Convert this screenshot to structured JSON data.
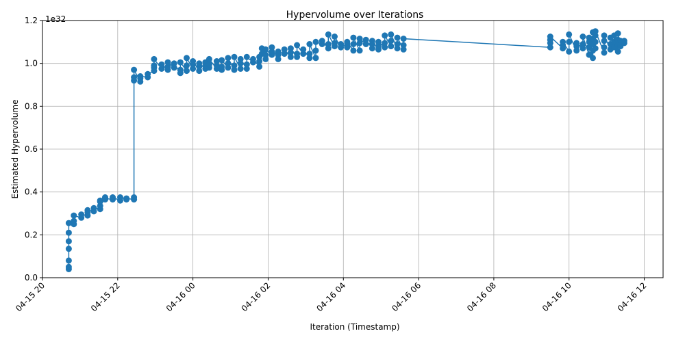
{
  "chart_data": {
    "type": "line",
    "title": "Hypervolume over Iterations",
    "xlabel": "Iteration (Timestamp)",
    "ylabel": "Estimated Hypervolume",
    "y_offset_label": "1e32",
    "x_axis_kind": "datetime",
    "xlim": [
      "2025-04-15T20:00",
      "2025-04-16T12:30"
    ],
    "ylim": [
      0,
      1.2
    ],
    "grid": true,
    "legend": "none",
    "marker": "circle",
    "color": "#1f77b4",
    "x_ticks": [
      {
        "t": "2025-04-15T20:00",
        "label": "04-15 20"
      },
      {
        "t": "2025-04-15T22:00",
        "label": "04-15 22"
      },
      {
        "t": "2025-04-16T00:00",
        "label": "04-16 00"
      },
      {
        "t": "2025-04-16T02:00",
        "label": "04-16 02"
      },
      {
        "t": "2025-04-16T04:00",
        "label": "04-16 04"
      },
      {
        "t": "2025-04-16T06:00",
        "label": "04-16 06"
      },
      {
        "t": "2025-04-16T08:00",
        "label": "04-16 08"
      },
      {
        "t": "2025-04-16T10:00",
        "label": "04-16 10"
      },
      {
        "t": "2025-04-16T12:00",
        "label": "04-16 12"
      }
    ],
    "y_ticks": [
      {
        "v": 0.0,
        "label": "0.0"
      },
      {
        "v": 0.2,
        "label": "0.2"
      },
      {
        "v": 0.4,
        "label": "0.4"
      },
      {
        "v": 0.6,
        "label": "0.6"
      },
      {
        "v": 0.8,
        "label": "0.8"
      },
      {
        "v": 1.0,
        "label": "1.0"
      },
      {
        "v": 1.2,
        "label": "1.2"
      }
    ],
    "series": [
      {
        "points": [
          [
            "2025-04-15T20:42",
            0.04
          ],
          [
            "2025-04-15T20:42",
            0.05
          ],
          [
            "2025-04-15T20:42",
            0.08
          ],
          [
            "2025-04-15T20:42",
            0.135
          ],
          [
            "2025-04-15T20:42",
            0.17
          ],
          [
            "2025-04-15T20:42",
            0.21
          ],
          [
            "2025-04-15T20:42",
            0.255
          ],
          [
            "2025-04-15T20:50",
            0.25
          ],
          [
            "2025-04-15T20:50",
            0.265
          ],
          [
            "2025-04-15T20:50",
            0.29
          ],
          [
            "2025-04-15T21:02",
            0.28
          ],
          [
            "2025-04-15T21:02",
            0.295
          ],
          [
            "2025-04-15T21:12",
            0.29
          ],
          [
            "2025-04-15T21:12",
            0.305
          ],
          [
            "2025-04-15T21:12",
            0.315
          ],
          [
            "2025-04-15T21:22",
            0.31
          ],
          [
            "2025-04-15T21:22",
            0.325
          ],
          [
            "2025-04-15T21:32",
            0.32
          ],
          [
            "2025-04-15T21:32",
            0.335
          ],
          [
            "2025-04-15T21:32",
            0.355
          ],
          [
            "2025-04-15T21:32",
            0.36
          ],
          [
            "2025-04-15T21:40",
            0.365
          ],
          [
            "2025-04-15T21:40",
            0.375
          ],
          [
            "2025-04-15T21:40",
            0.37
          ],
          [
            "2025-04-15T21:52",
            0.365
          ],
          [
            "2025-04-15T21:52",
            0.375
          ],
          [
            "2025-04-15T22:04",
            0.36
          ],
          [
            "2025-04-15T22:04",
            0.375
          ],
          [
            "2025-04-15T22:14",
            0.365
          ],
          [
            "2025-04-15T22:14",
            0.37
          ],
          [
            "2025-04-15T22:26",
            0.365
          ],
          [
            "2025-04-15T22:26",
            0.375
          ],
          [
            "2025-04-15T22:26",
            0.92
          ],
          [
            "2025-04-15T22:26",
            0.935
          ],
          [
            "2025-04-15T22:26",
            0.97
          ],
          [
            "2025-04-15T22:36",
            0.915
          ],
          [
            "2025-04-15T22:36",
            0.93
          ],
          [
            "2025-04-15T22:36",
            0.94
          ],
          [
            "2025-04-15T22:48",
            0.935
          ],
          [
            "2025-04-15T22:48",
            0.95
          ],
          [
            "2025-04-15T22:58",
            0.965
          ],
          [
            "2025-04-15T22:58",
            0.98
          ],
          [
            "2025-04-15T22:58",
            0.99
          ],
          [
            "2025-04-15T22:58",
            1.02
          ],
          [
            "2025-04-15T23:10",
            0.975
          ],
          [
            "2025-04-15T23:10",
            0.995
          ],
          [
            "2025-04-15T23:20",
            0.97
          ],
          [
            "2025-04-15T23:20",
            0.985
          ],
          [
            "2025-04-15T23:20",
            1.005
          ],
          [
            "2025-04-15T23:30",
            0.98
          ],
          [
            "2025-04-15T23:30",
            1.0
          ],
          [
            "2025-04-15T23:40",
            0.955
          ],
          [
            "2025-04-15T23:40",
            0.97
          ],
          [
            "2025-04-15T23:40",
            1.005
          ],
          [
            "2025-04-15T23:50",
            0.965
          ],
          [
            "2025-04-15T23:50",
            0.99
          ],
          [
            "2025-04-15T23:50",
            1.025
          ],
          [
            "2025-04-16T00:00",
            0.975
          ],
          [
            "2025-04-16T00:00",
            0.995
          ],
          [
            "2025-04-16T00:00",
            1.01
          ],
          [
            "2025-04-16T00:10",
            0.965
          ],
          [
            "2025-04-16T00:10",
            0.985
          ],
          [
            "2025-04-16T00:10",
            1.0
          ],
          [
            "2025-04-16T00:20",
            0.975
          ],
          [
            "2025-04-16T00:20",
            0.99
          ],
          [
            "2025-04-16T00:20",
            1.005
          ],
          [
            "2025-04-16T00:26",
            0.98
          ],
          [
            "2025-04-16T00:26",
            0.995
          ],
          [
            "2025-04-16T00:26",
            1.02
          ],
          [
            "2025-04-16T00:38",
            0.975
          ],
          [
            "2025-04-16T00:38",
            0.99
          ],
          [
            "2025-04-16T00:38",
            1.01
          ],
          [
            "2025-04-16T00:46",
            0.97
          ],
          [
            "2025-04-16T00:46",
            0.985
          ],
          [
            "2025-04-16T00:46",
            1.015
          ],
          [
            "2025-04-16T00:56",
            0.98
          ],
          [
            "2025-04-16T00:56",
            1.0
          ],
          [
            "2025-04-16T00:56",
            1.025
          ],
          [
            "2025-04-16T01:06",
            0.97
          ],
          [
            "2025-04-16T01:06",
            0.99
          ],
          [
            "2025-04-16T01:06",
            1.03
          ],
          [
            "2025-04-16T01:16",
            0.975
          ],
          [
            "2025-04-16T01:16",
            1.0
          ],
          [
            "2025-04-16T01:16",
            1.02
          ],
          [
            "2025-04-16T01:26",
            0.975
          ],
          [
            "2025-04-16T01:26",
            0.995
          ],
          [
            "2025-04-16T01:26",
            1.03
          ],
          [
            "2025-04-16T01:36",
            1.005
          ],
          [
            "2025-04-16T01:36",
            1.02
          ],
          [
            "2025-04-16T01:46",
            0.985
          ],
          [
            "2025-04-16T01:46",
            1.01
          ],
          [
            "2025-04-16T01:46",
            1.03
          ],
          [
            "2025-04-16T01:50",
            1.045
          ],
          [
            "2025-04-16T01:50",
            1.07
          ],
          [
            "2025-04-16T01:56",
            1.02
          ],
          [
            "2025-04-16T01:56",
            1.04
          ],
          [
            "2025-04-16T01:56",
            1.065
          ],
          [
            "2025-04-16T02:06",
            1.04
          ],
          [
            "2025-04-16T02:06",
            1.055
          ],
          [
            "2025-04-16T02:06",
            1.075
          ],
          [
            "2025-04-16T02:16",
            1.02
          ],
          [
            "2025-04-16T02:16",
            1.04
          ],
          [
            "2025-04-16T02:16",
            1.055
          ],
          [
            "2025-04-16T02:26",
            1.045
          ],
          [
            "2025-04-16T02:26",
            1.065
          ],
          [
            "2025-04-16T02:36",
            1.03
          ],
          [
            "2025-04-16T02:36",
            1.05
          ],
          [
            "2025-04-16T02:36",
            1.07
          ],
          [
            "2025-04-16T02:46",
            1.03
          ],
          [
            "2025-04-16T02:46",
            1.045
          ],
          [
            "2025-04-16T02:46",
            1.085
          ],
          [
            "2025-04-16T02:56",
            1.045
          ],
          [
            "2025-04-16T02:56",
            1.065
          ],
          [
            "2025-04-16T03:06",
            1.025
          ],
          [
            "2025-04-16T03:06",
            1.045
          ],
          [
            "2025-04-16T03:06",
            1.09
          ],
          [
            "2025-04-16T03:16",
            1.025
          ],
          [
            "2025-04-16T03:16",
            1.06
          ],
          [
            "2025-04-16T03:16",
            1.1
          ],
          [
            "2025-04-16T03:26",
            1.09
          ],
          [
            "2025-04-16T03:26",
            1.105
          ],
          [
            "2025-04-16T03:36",
            1.07
          ],
          [
            "2025-04-16T03:36",
            1.09
          ],
          [
            "2025-04-16T03:36",
            1.135
          ],
          [
            "2025-04-16T03:46",
            1.08
          ],
          [
            "2025-04-16T03:46",
            1.095
          ],
          [
            "2025-04-16T03:46",
            1.125
          ],
          [
            "2025-04-16T03:56",
            1.075
          ],
          [
            "2025-04-16T03:56",
            1.09
          ],
          [
            "2025-04-16T04:06",
            1.075
          ],
          [
            "2025-04-16T04:06",
            1.09
          ],
          [
            "2025-04-16T04:06",
            1.1
          ],
          [
            "2025-04-16T04:16",
            1.06
          ],
          [
            "2025-04-16T04:16",
            1.09
          ],
          [
            "2025-04-16T04:16",
            1.12
          ],
          [
            "2025-04-16T04:26",
            1.06
          ],
          [
            "2025-04-16T04:26",
            1.095
          ],
          [
            "2025-04-16T04:26",
            1.115
          ],
          [
            "2025-04-16T04:36",
            1.09
          ],
          [
            "2025-04-16T04:36",
            1.11
          ],
          [
            "2025-04-16T04:46",
            1.07
          ],
          [
            "2025-04-16T04:46",
            1.09
          ],
          [
            "2025-04-16T04:46",
            1.105
          ],
          [
            "2025-04-16T04:56",
            1.065
          ],
          [
            "2025-04-16T04:56",
            1.08
          ],
          [
            "2025-04-16T04:56",
            1.1
          ],
          [
            "2025-04-16T05:06",
            1.075
          ],
          [
            "2025-04-16T05:06",
            1.095
          ],
          [
            "2025-04-16T05:06",
            1.13
          ],
          [
            "2025-04-16T05:16",
            1.08
          ],
          [
            "2025-04-16T05:16",
            1.105
          ],
          [
            "2025-04-16T05:16",
            1.135
          ],
          [
            "2025-04-16T05:26",
            1.07
          ],
          [
            "2025-04-16T05:26",
            1.09
          ],
          [
            "2025-04-16T05:26",
            1.12
          ],
          [
            "2025-04-16T05:36",
            1.065
          ],
          [
            "2025-04-16T05:36",
            1.085
          ],
          [
            "2025-04-16T05:36",
            1.115
          ],
          [
            "2025-04-16T09:30",
            1.075
          ],
          [
            "2025-04-16T09:30",
            1.095
          ],
          [
            "2025-04-16T09:30",
            1.11
          ],
          [
            "2025-04-16T09:30",
            1.125
          ],
          [
            "2025-04-16T09:50",
            1.07
          ],
          [
            "2025-04-16T09:50",
            1.085
          ],
          [
            "2025-04-16T09:50",
            1.1
          ],
          [
            "2025-04-16T10:00",
            1.055
          ],
          [
            "2025-04-16T10:00",
            1.1
          ],
          [
            "2025-04-16T10:00",
            1.135
          ],
          [
            "2025-04-16T10:12",
            1.06
          ],
          [
            "2025-04-16T10:12",
            1.08
          ],
          [
            "2025-04-16T10:12",
            1.095
          ],
          [
            "2025-04-16T10:22",
            1.07
          ],
          [
            "2025-04-16T10:22",
            1.09
          ],
          [
            "2025-04-16T10:22",
            1.125
          ],
          [
            "2025-04-16T10:32",
            1.04
          ],
          [
            "2025-04-16T10:32",
            1.075
          ],
          [
            "2025-04-16T10:32",
            1.1
          ],
          [
            "2025-04-16T10:32",
            1.12
          ],
          [
            "2025-04-16T10:38",
            1.025
          ],
          [
            "2025-04-16T10:38",
            1.06
          ],
          [
            "2025-04-16T10:38",
            1.09
          ],
          [
            "2025-04-16T10:38",
            1.115
          ],
          [
            "2025-04-16T10:38",
            1.145
          ],
          [
            "2025-04-16T10:42",
            1.07
          ],
          [
            "2025-04-16T10:42",
            1.1
          ],
          [
            "2025-04-16T10:42",
            1.13
          ],
          [
            "2025-04-16T10:42",
            1.15
          ],
          [
            "2025-04-16T10:56",
            1.05
          ],
          [
            "2025-04-16T10:56",
            1.075
          ],
          [
            "2025-04-16T10:56",
            1.105
          ],
          [
            "2025-04-16T10:56",
            1.13
          ],
          [
            "2025-04-16T11:06",
            1.065
          ],
          [
            "2025-04-16T11:06",
            1.09
          ],
          [
            "2025-04-16T11:06",
            1.12
          ],
          [
            "2025-04-16T11:12",
            1.075
          ],
          [
            "2025-04-16T11:12",
            1.1
          ],
          [
            "2025-04-16T11:12",
            1.13
          ],
          [
            "2025-04-16T11:18",
            1.055
          ],
          [
            "2025-04-16T11:18",
            1.085
          ],
          [
            "2025-04-16T11:18",
            1.11
          ],
          [
            "2025-04-16T11:18",
            1.14
          ],
          [
            "2025-04-16T11:22",
            1.08
          ],
          [
            "2025-04-16T11:22",
            1.105
          ],
          [
            "2025-04-16T11:28",
            1.095
          ],
          [
            "2025-04-16T11:28",
            1.105
          ]
        ]
      }
    ]
  }
}
